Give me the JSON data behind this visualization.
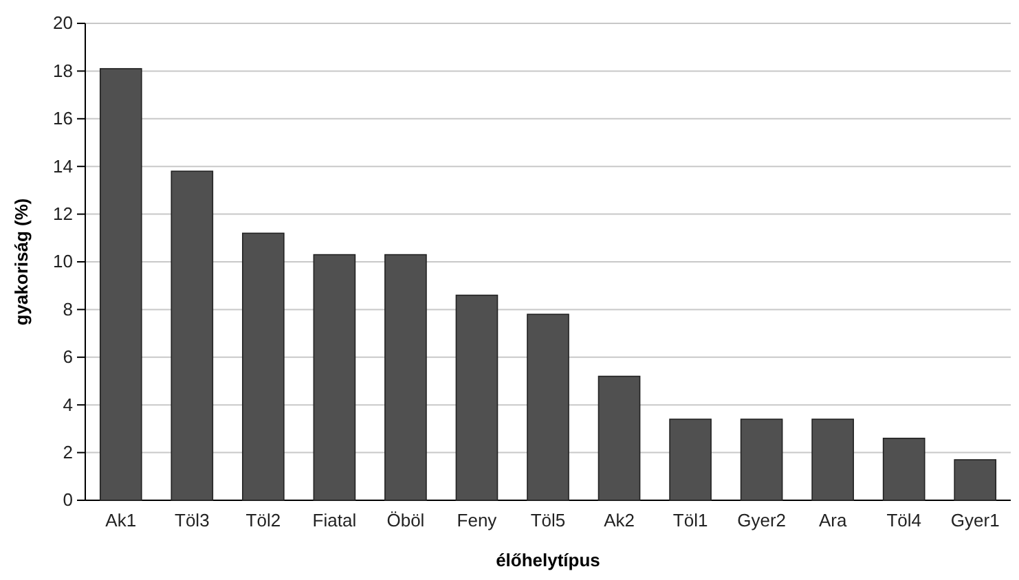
{
  "chart_data": {
    "type": "bar",
    "categories": [
      "Ak1",
      "Töl3",
      "Töl2",
      "Fiatal",
      "Öböl",
      "Feny",
      "Töl5",
      "Ak2",
      "Töl1",
      "Gyer2",
      "Ara",
      "Töl4",
      "Gyer1"
    ],
    "values": [
      18.1,
      13.8,
      11.2,
      10.3,
      10.3,
      8.6,
      7.8,
      5.2,
      3.4,
      3.4,
      3.4,
      2.6,
      1.7
    ],
    "color": "#505050",
    "xlabel": "élőhelytípus",
    "ylabel": "gyakoriság (%)",
    "ylim": [
      0,
      20
    ],
    "yticks": [
      0,
      2,
      4,
      6,
      8,
      10,
      12,
      14,
      16,
      18,
      20
    ],
    "grid": "y"
  }
}
